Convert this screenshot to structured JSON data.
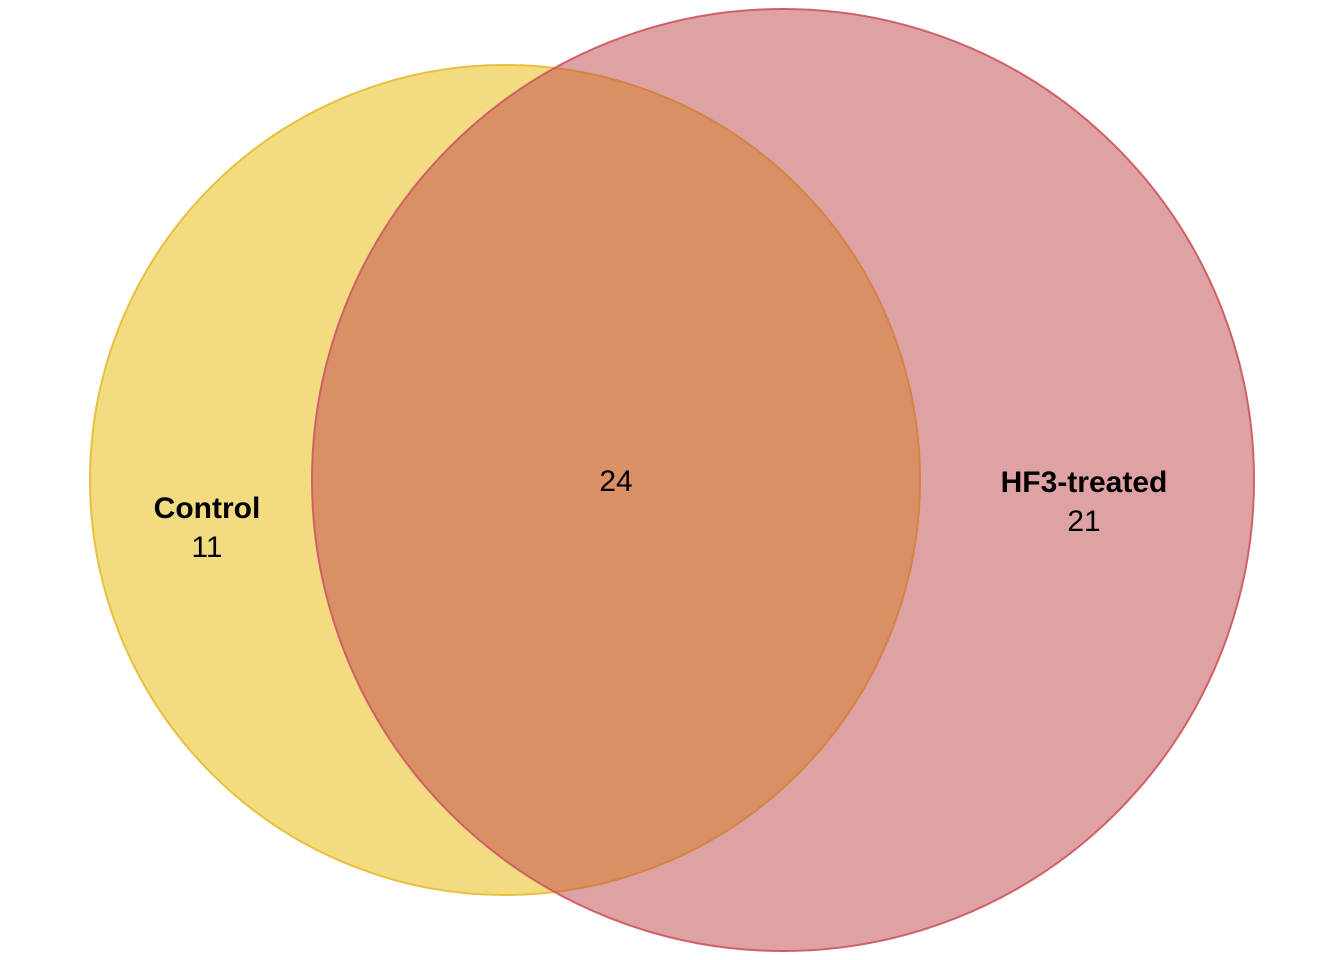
{
  "venn": {
    "sets": [
      {
        "name": "Control",
        "only_count": "11",
        "fill": "#E8B800",
        "stroke": "#E8C040"
      },
      {
        "name": "HF3-treated",
        "only_count": "21",
        "fill": "#C0454A",
        "stroke": "#D06068"
      }
    ],
    "intersection_count": "24"
  }
}
